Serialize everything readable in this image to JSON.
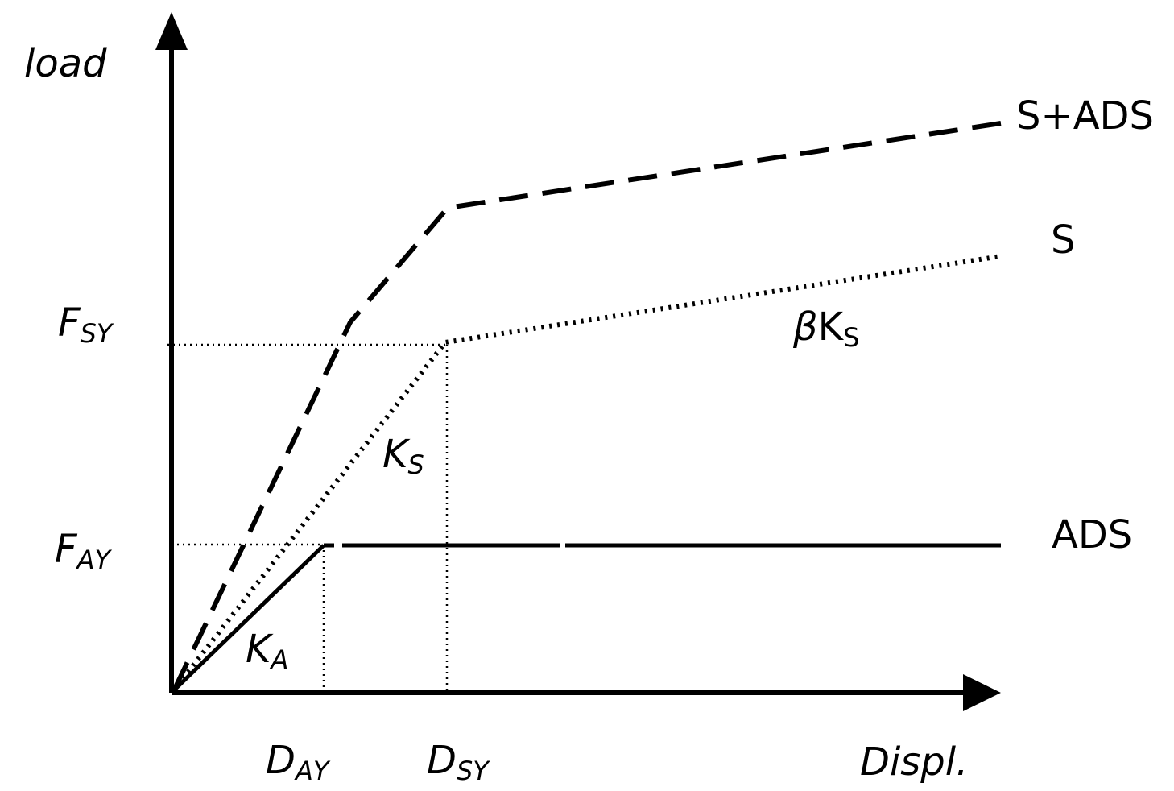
{
  "axes": {
    "y_label": "load",
    "x_label": "Displ."
  },
  "y_ticks": {
    "fsy": {
      "main": "F",
      "sub": "SY"
    },
    "fay": {
      "main": "F",
      "sub": "AY"
    }
  },
  "x_ticks": {
    "day": {
      "main": "D",
      "sub": "AY"
    },
    "dsy": {
      "main": "D",
      "sub": "SY"
    }
  },
  "curves": {
    "s_ads": {
      "label": "S+ADS",
      "style": "dashed"
    },
    "s": {
      "label": "S",
      "style": "dotted"
    },
    "ads": {
      "label": "ADS",
      "style": "solid"
    }
  },
  "stiffness": {
    "ka": {
      "main": "K",
      "sub": "A"
    },
    "ks": {
      "main": "K",
      "sub": "S"
    },
    "beta_ks": {
      "prefix": "β",
      "main": "K",
      "sub": "S"
    }
  },
  "colors": {
    "ink": "#000000",
    "background": "#ffffff"
  }
}
